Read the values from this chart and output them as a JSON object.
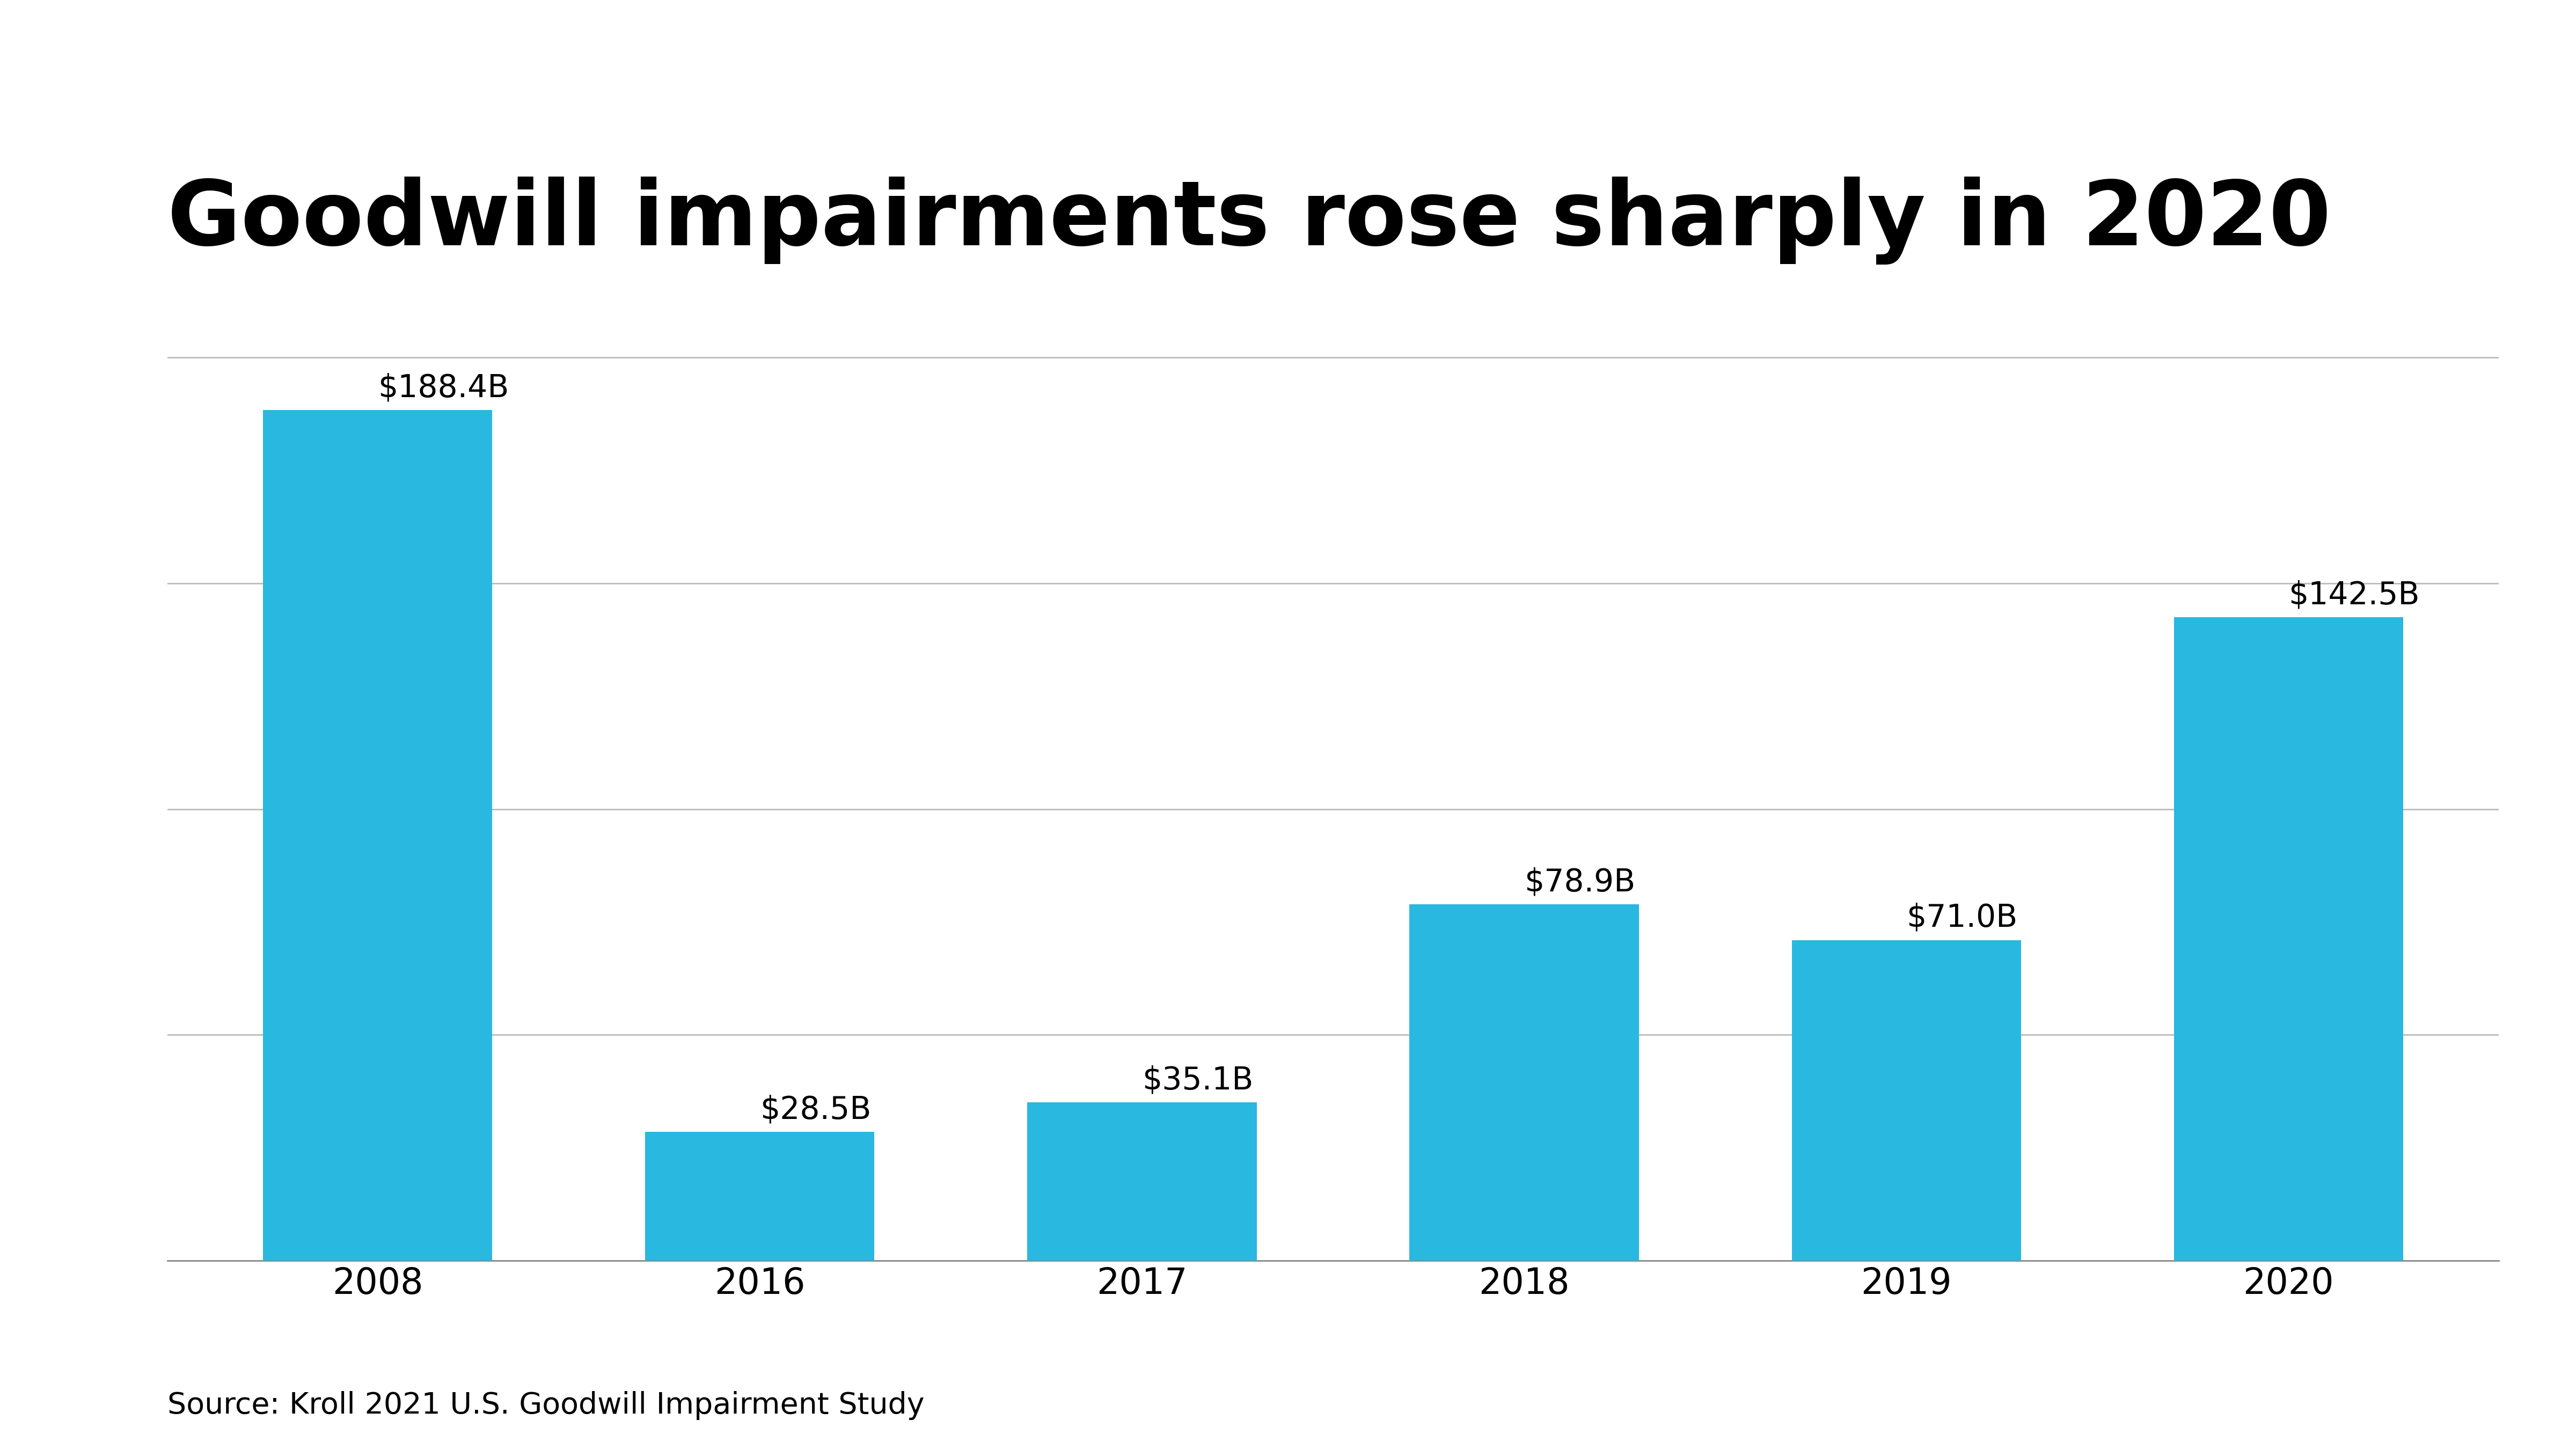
{
  "title": "Goodwill impairments rose sharply in 2020",
  "categories": [
    "2008",
    "2016",
    "2017",
    "2018",
    "2019",
    "2020"
  ],
  "values": [
    188.4,
    28.5,
    35.1,
    78.9,
    71.0,
    142.5
  ],
  "labels": [
    "$188.4B",
    "$28.5B",
    "$35.1B",
    "$78.9B",
    "$71.0B",
    "$142.5B"
  ],
  "bar_color": "#29B8E0",
  "background_color": "#FFFFFF",
  "title_fontsize": 120,
  "label_fontsize": 42,
  "tick_fontsize": 48,
  "source_text": "Source: Kroll 2021 U.S. Goodwill Impairment Study",
  "source_fontsize": 40,
  "ylim": [
    0,
    215
  ],
  "yticks": [
    0,
    50,
    100,
    150,
    200
  ],
  "grid_color": "#BBBBBB",
  "bar_width": 0.6,
  "grid_linewidth": 2.0,
  "spine_linewidth": 2.0
}
